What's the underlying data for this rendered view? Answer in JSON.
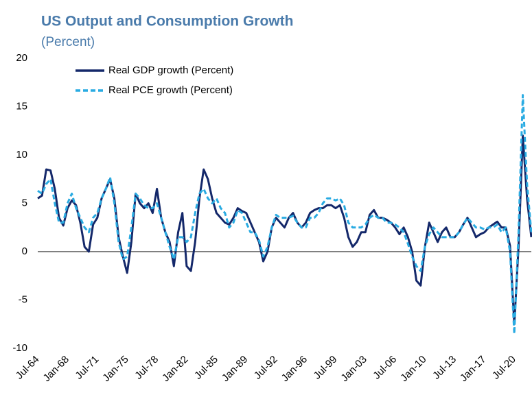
{
  "chart_data": {
    "type": "line",
    "title": "US Output and Consumption Growth",
    "subtitle": "(Percent)",
    "categories": [
      "Jul-64",
      null,
      null,
      null,
      null,
      null,
      null,
      "Jan-68",
      null,
      null,
      null,
      null,
      null,
      null,
      "Jul-71",
      null,
      null,
      null,
      null,
      null,
      null,
      "Jan-75",
      null,
      null,
      null,
      null,
      null,
      null,
      "Jul-78",
      null,
      null,
      null,
      null,
      null,
      null,
      "Jan-82",
      null,
      null,
      null,
      null,
      null,
      null,
      "Jul-85",
      null,
      null,
      null,
      null,
      null,
      null,
      "Jan-89",
      null,
      null,
      null,
      null,
      null,
      null,
      "Jul-92",
      null,
      null,
      null,
      null,
      null,
      null,
      "Jan-96",
      null,
      null,
      null,
      null,
      null,
      null,
      "Jul-99",
      null,
      null,
      null,
      null,
      null,
      null,
      "Jan-03",
      null,
      null,
      null,
      null,
      null,
      null,
      "Jul-06",
      null,
      null,
      null,
      null,
      null,
      null,
      "Jan-10",
      null,
      null,
      null,
      null,
      null,
      null,
      "Jul-13",
      null,
      null,
      null,
      null,
      null,
      null,
      "Jan-17",
      null,
      null,
      null,
      null,
      null,
      null,
      "Jul-20",
      null,
      null,
      null,
      null
    ],
    "series": [
      {
        "name": "Real GDP growth (Percent)",
        "color": "#14286a",
        "dash": false,
        "values": [
          5.5,
          5.8,
          8.5,
          8.4,
          6.5,
          3.5,
          2.7,
          4.5,
          5.3,
          4.8,
          3.0,
          0.5,
          0.0,
          2.8,
          3.5,
          5.5,
          6.5,
          7.5,
          5.5,
          1.5,
          -0.5,
          -2.2,
          1.0,
          6.0,
          5.0,
          4.5,
          5.0,
          4.0,
          6.5,
          3.5,
          2.0,
          1.0,
          -1.5,
          2.0,
          4.0,
          -1.5,
          -2.0,
          1.0,
          5.5,
          8.5,
          7.5,
          5.5,
          4.0,
          3.5,
          3.0,
          2.8,
          3.5,
          4.5,
          4.2,
          4.0,
          3.0,
          2.0,
          1.0,
          -1.0,
          0.0,
          2.5,
          3.5,
          3.0,
          2.5,
          3.5,
          4.0,
          3.0,
          2.5,
          3.0,
          4.0,
          4.3,
          4.5,
          4.5,
          4.8,
          4.8,
          4.5,
          4.8,
          3.5,
          1.5,
          0.5,
          1.0,
          2.0,
          2.0,
          3.8,
          4.3,
          3.5,
          3.5,
          3.3,
          3.0,
          2.5,
          1.8,
          2.5,
          1.5,
          0.0,
          -3.0,
          -3.5,
          0.5,
          3.0,
          2.0,
          1.0,
          2.0,
          2.5,
          1.5,
          1.5,
          2.0,
          2.8,
          3.5,
          2.5,
          1.5,
          1.8,
          2.0,
          2.5,
          2.8,
          3.1,
          2.5,
          2.5,
          0.6,
          -7.5,
          0.5,
          12.0,
          5.5,
          1.5
        ]
      },
      {
        "name": "Real PCE growth (Percent)",
        "color": "#29abe2",
        "dash": true,
        "values": [
          6.3,
          6.0,
          7.0,
          7.5,
          5.0,
          3.0,
          3.0,
          5.0,
          6.0,
          4.5,
          3.5,
          2.5,
          2.0,
          3.5,
          4.0,
          5.5,
          6.5,
          7.7,
          5.0,
          1.0,
          -0.8,
          -0.5,
          2.5,
          6.0,
          5.5,
          4.8,
          4.5,
          4.5,
          5.0,
          3.5,
          2.0,
          0.5,
          -0.8,
          1.5,
          1.5,
          1.0,
          1.5,
          4.0,
          6.0,
          6.5,
          5.5,
          5.0,
          5.5,
          4.5,
          4.0,
          2.5,
          3.0,
          4.3,
          4.0,
          3.0,
          2.0,
          2.0,
          1.2,
          -0.5,
          0.5,
          2.5,
          3.8,
          3.5,
          3.5,
          3.5,
          3.7,
          3.0,
          2.5,
          2.5,
          3.5,
          3.5,
          4.0,
          5.0,
          5.5,
          5.5,
          5.3,
          5.5,
          4.8,
          3.0,
          2.5,
          2.5,
          2.5,
          2.8,
          3.5,
          3.8,
          3.5,
          3.5,
          3.0,
          3.0,
          2.8,
          2.5,
          2.0,
          0.8,
          -0.5,
          -1.5,
          -2.0,
          0.5,
          1.8,
          2.5,
          2.0,
          1.5,
          1.5,
          1.5,
          1.5,
          2.0,
          2.8,
          3.5,
          3.0,
          2.5,
          2.5,
          2.3,
          2.5,
          2.5,
          2.8,
          2.0,
          2.5,
          0.0,
          -8.5,
          2.0,
          16.2,
          7.0,
          2.0
        ]
      }
    ],
    "ylim": [
      -10,
      20
    ],
    "yticks": [
      -10,
      -5,
      0,
      5,
      10,
      15,
      20
    ],
    "grid": false,
    "legend": "top-left"
  }
}
